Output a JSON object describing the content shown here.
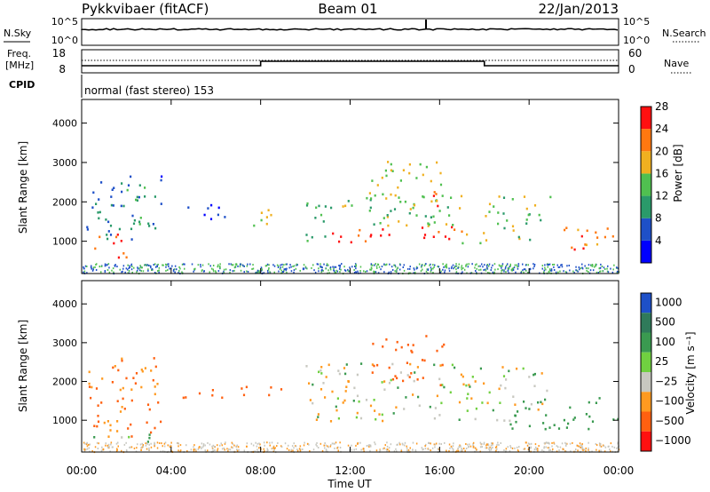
{
  "header": {
    "station": "Pykkvibaer (fitACF)",
    "beam": "Beam 01",
    "date": "22/Jan/2013"
  },
  "status_panels": {
    "nsky_label": "N.Sky",
    "nsearch_label": "N.Search",
    "freq_label_1": "Freq.",
    "freq_label_2": "[MHz]",
    "nave_label": "Nave",
    "cpid_label": "CPID",
    "cpid_text": "normal (fast stereo) 153",
    "left_ticks_noise": [
      "10^5",
      "10^0"
    ],
    "right_ticks_noise": [
      "10^5",
      "10^0"
    ],
    "left_ticks_freq": [
      "18",
      "8"
    ],
    "right_ticks_nave": [
      "60",
      "0"
    ]
  },
  "axes": {
    "xlabel": "Time UT",
    "ylabel": "Slant Range [km]",
    "y_tick_labels": [
      "1000",
      "2000",
      "3000",
      "4000"
    ],
    "x_tick_labels": [
      "00:00",
      "04:00",
      "08:00",
      "12:00",
      "16:00",
      "20:00",
      "00:00"
    ]
  },
  "colorbars": {
    "power": {
      "label": "Power [dB]",
      "tick_labels": [
        "4",
        "8",
        "12",
        "16",
        "20",
        "24",
        "28"
      ],
      "colors": [
        "#0000ff",
        "#1e50c8",
        "#2a9a6a",
        "#50c050",
        "#f0b020",
        "#ff7810",
        "#ff1010"
      ]
    },
    "velocity": {
      "label": "Velocity [m s⁻¹]",
      "tick_labels": [
        "1000",
        "500",
        "100",
        "25",
        "−25",
        "−100",
        "−500",
        "−1000"
      ],
      "colors": [
        "#1e50c8",
        "#2f7a5a",
        "#3a9a50",
        "#70d040",
        "#c8c8c0",
        "#ff9a20",
        "#ff6010",
        "#ff1010"
      ]
    }
  },
  "chart_data": [
    {
      "type": "heatmap",
      "variable": "Power [dB]",
      "x_unit": "hours UT",
      "y_unit": "km",
      "xlim": [
        0,
        24
      ],
      "ylim": [
        180,
        4600
      ],
      "x_ticks": [
        0,
        4,
        8,
        12,
        16,
        20,
        24
      ],
      "y_ticks": [
        1000,
        2000,
        3000,
        4000
      ],
      "regions": [
        {
          "t0": 0.2,
          "t1": 1.5,
          "r0": 900,
          "r1": 2600,
          "power": 10
        },
        {
          "t0": 1.5,
          "t1": 3.3,
          "r0": 900,
          "r1": 2700,
          "power": 12
        },
        {
          "t0": 0.5,
          "t1": 2.0,
          "r0": 600,
          "r1": 1200,
          "power": 26
        },
        {
          "t0": 3.2,
          "t1": 3.6,
          "r0": 1600,
          "r1": 3000,
          "power": 8
        },
        {
          "t0": 4.5,
          "t1": 6.5,
          "r0": 1400,
          "r1": 2000,
          "power": 8
        },
        {
          "t0": 7.3,
          "t1": 8.7,
          "r0": 1400,
          "r1": 1900,
          "power": 18
        },
        {
          "t0": 10.0,
          "t1": 11.0,
          "r0": 1000,
          "r1": 2400,
          "power": 14
        },
        {
          "t0": 11.0,
          "t1": 17.0,
          "r0": 1000,
          "r1": 1400,
          "power": 27
        },
        {
          "t0": 11.0,
          "t1": 17.0,
          "r0": 1400,
          "r1": 2200,
          "power": 16
        },
        {
          "t0": 12.8,
          "t1": 16.4,
          "r0": 1800,
          "r1": 3200,
          "power": 18
        },
        {
          "t0": 15.5,
          "t1": 16.3,
          "r0": 1900,
          "r1": 2400,
          "power": 26
        },
        {
          "t0": 16.5,
          "t1": 18.0,
          "r0": 900,
          "r1": 1300,
          "power": 20
        },
        {
          "t0": 18.0,
          "t1": 21.0,
          "r0": 1000,
          "r1": 2200,
          "power": 16
        },
        {
          "t0": 21.0,
          "t1": 24.0,
          "r0": 800,
          "r1": 1400,
          "power": 24
        }
      ]
    },
    {
      "type": "heatmap",
      "variable": "Velocity [m s⁻¹]",
      "x_unit": "hours UT",
      "y_unit": "km",
      "xlim": [
        0,
        24
      ],
      "ylim": [
        180,
        4600
      ],
      "x_ticks": [
        0,
        4,
        8,
        12,
        16,
        20,
        24
      ],
      "y_ticks": [
        1000,
        2000,
        3000,
        4000
      ],
      "regions": [
        {
          "t0": 0.2,
          "t1": 3.5,
          "r0": 600,
          "r1": 2700,
          "velocity": -200
        },
        {
          "t0": 0.0,
          "t1": 3.0,
          "r0": 450,
          "r1": 700,
          "velocity": 100
        },
        {
          "t0": 4.5,
          "t1": 9.0,
          "r0": 1500,
          "r1": 1900,
          "velocity": -300
        },
        {
          "t0": 10.0,
          "t1": 21.0,
          "r0": 1000,
          "r1": 2500,
          "velocity": 0
        },
        {
          "t0": 12.8,
          "t1": 16.3,
          "r0": 1800,
          "r1": 3200,
          "velocity": -400
        },
        {
          "t0": 19.0,
          "t1": 24.0,
          "r0": 800,
          "r1": 1600,
          "velocity": 150
        }
      ]
    }
  ]
}
